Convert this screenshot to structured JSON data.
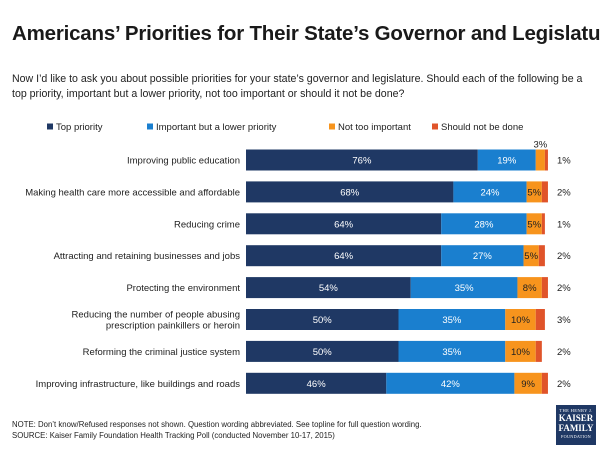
{
  "chart_data": {
    "type": "bar",
    "orientation": "horizontal",
    "stacked": true,
    "title": "Americans’ Priorities for Their State’s Governor and Legislature",
    "subtitle": "Now I’d like to ask you about possible priorities for your state’s governor and legislature. Should each of the following be a top priority, important but a lower priority, not too important or should it not be done?",
    "categories": [
      [
        "Improving public education"
      ],
      [
        "Making health care more accessible and affordable"
      ],
      [
        "Reducing crime"
      ],
      [
        "Attracting and retaining businesses and jobs"
      ],
      [
        "Protecting the environment"
      ],
      [
        "Reducing the number of people abusing",
        "prescription painkillers or heroin"
      ],
      [
        "Reforming the criminal justice system"
      ],
      [
        "Improving infrastructure, like buildings and roads"
      ]
    ],
    "series": [
      {
        "name": "Top priority",
        "color": "#1f3864",
        "values": [
          76,
          68,
          64,
          64,
          54,
          50,
          50,
          46
        ],
        "labels": [
          "76%",
          "68%",
          "64%",
          "64%",
          "54%",
          "50%",
          "50%",
          "46%"
        ]
      },
      {
        "name": "Important but a lower priority",
        "color": "#1a7fcf",
        "values": [
          19,
          24,
          28,
          27,
          35,
          35,
          35,
          42
        ],
        "labels": [
          "19%",
          "24%",
          "28%",
          "27%",
          "35%",
          "35%",
          "35%",
          "42%"
        ]
      },
      {
        "name": "Not too important",
        "color": "#f7941d",
        "values": [
          3,
          5,
          5,
          5,
          8,
          10,
          10,
          9
        ],
        "labels": [
          "3%",
          "5%",
          "5%",
          "5%",
          "8%",
          "10%",
          "10%",
          "9%"
        ]
      },
      {
        "name": "Should not be done",
        "color": "#e0542a",
        "values": [
          1,
          2,
          1,
          2,
          2,
          3,
          2,
          2
        ],
        "labels": [
          "1%",
          "2%",
          "1%",
          "2%",
          "2%",
          "3%",
          "2%",
          "2%"
        ]
      }
    ],
    "xlim": [
      0,
      100
    ]
  },
  "footer": {
    "note": "NOTE: Don’t know/Refused responses not shown. Question wording abbreviated.  See topline for full question wording.",
    "source": "SOURCE: Kaiser Family Foundation Health Tracking Poll (conducted November 10-17, 2015)"
  },
  "logo": {
    "line1": "THE HENRY J.",
    "line2a": "KAISER",
    "line2b": "FAMILY",
    "line3": "FOUNDATION"
  }
}
